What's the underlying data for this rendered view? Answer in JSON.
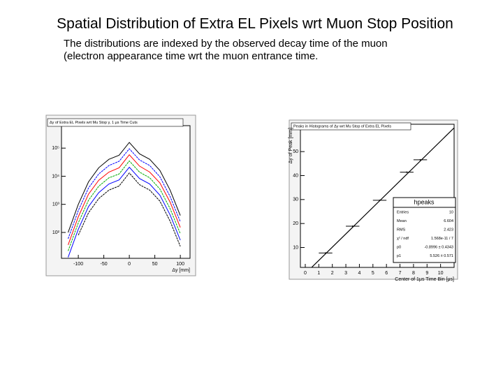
{
  "slide": {
    "title": "Spatial Distribution of Extra EL Pixels wrt Muon Stop Position",
    "text": [
      "The distributions are indexed by the observed decay time of the muon",
      "(electron appearance time wrt the muon entrance time."
    ]
  },
  "chart_data": [
    {
      "type": "line",
      "title": "Δy of Extra EL Pixels wrt Mu Stop y, 1 μs Time Cuts",
      "x_label": "Δy [mm]",
      "x": [
        -120,
        -100,
        -80,
        -60,
        -40,
        -20,
        0,
        20,
        40,
        60,
        80,
        100
      ],
      "log_y": true,
      "series": [
        {
          "color": "#000000",
          "values": [
            100,
            1000,
            6300,
            20000,
            40000,
            56000,
            160000,
            63000,
            40000,
            16000,
            3200,
            400
          ]
        },
        {
          "color": "#0000ff",
          "values": [
            60,
            600,
            3800,
            12000,
            24000,
            34000,
            95000,
            38000,
            24000,
            9500,
            1900,
            240
          ]
        },
        {
          "color": "#ff0000",
          "values": [
            36,
            360,
            2300,
            7200,
            14000,
            20000,
            58000,
            23000,
            14000,
            5800,
            1200,
            150
          ]
        },
        {
          "color": "#00aa00",
          "values": [
            22,
            220,
            1400,
            4400,
            8800,
            12000,
            35000,
            14000,
            8800,
            3500,
            700,
            90
          ]
        },
        {
          "color": "#0000ff",
          "values": [
            13,
            130,
            830,
            2600,
            5300,
            7400,
            21000,
            8300,
            5300,
            2100,
            420,
            53
          ]
        },
        {
          "color": "#000000",
          "values": [
            null,
            80,
            500,
            1600,
            3200,
            4500,
            13000,
            5000,
            3200,
            1300,
            250,
            32
          ]
        }
      ],
      "xlim": [
        -133,
        119
      ],
      "xticks": [
        -100,
        -50,
        0,
        50,
        100
      ],
      "ylim": [
        12,
        630000
      ],
      "yticks": [
        {
          "value": 100,
          "label": "10²"
        },
        {
          "value": 1000,
          "label": "10³"
        },
        {
          "value": 10000,
          "label": "10⁴"
        },
        {
          "value": 100000,
          "label": "10⁵"
        }
      ]
    },
    {
      "type": "scatter",
      "title": "Peaks in Histograms of Δy wrt Mu Stop of Extra EL Pixels",
      "x_label": "Center of 1μs Time Bin [μs]",
      "y_label": "Δy of Peak [mm]",
      "color": "#000000",
      "x": [
        1.5,
        3.5,
        5.5,
        7.5,
        8.5
      ],
      "xerr": [
        0.5,
        0.5,
        0.5,
        0.5,
        0.5
      ],
      "values": [
        7.7,
        18.9,
        29.7,
        41.4,
        46.6
      ],
      "xlim": [
        -0.36,
        11
      ],
      "xticks": [
        0,
        1,
        2,
        3,
        4,
        5,
        6,
        7,
        8,
        9,
        10
      ],
      "ylim": [
        1.7,
        61.4
      ],
      "yticks": [
        10,
        20,
        30,
        40,
        50
      ],
      "stats": {
        "name": "hpeaks",
        "rows": [
          {
            "label": "Entries",
            "value": 10
          },
          {
            "label": "Mean",
            "value": 6.604
          },
          {
            "label": "RMS",
            "value": 2.423
          },
          {
            "label": "χ² / ndf",
            "value": "1.568e-11 / 7"
          },
          {
            "label": "p0",
            "value": {
              "value": -0.8996,
              "label": "-0.8996 ± 0.4343"
            }
          },
          {
            "label": "p1",
            "value": {
              "value": 5.526,
              "label": "5.526 ± 0.571"
            }
          }
        ]
      }
    }
  ]
}
